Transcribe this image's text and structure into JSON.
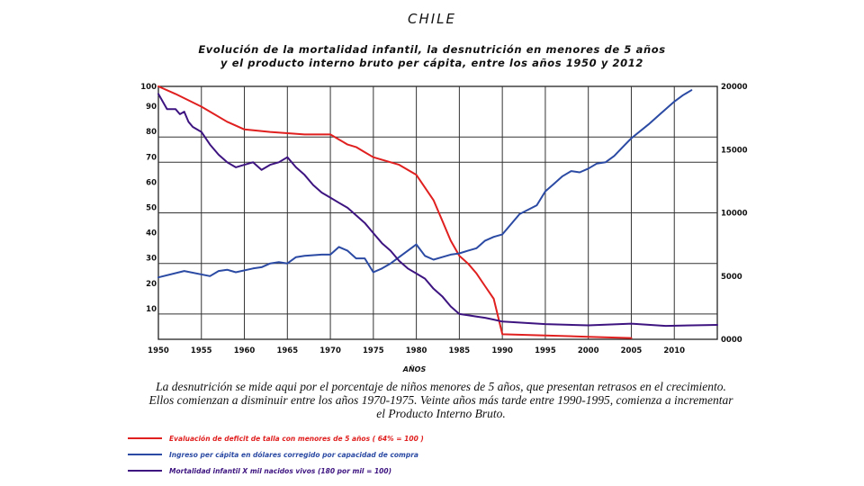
{
  "chart_data": {
    "type": "line",
    "country": "CHILE",
    "title_line1": "Evolución de la mortalidad infantil, la desnutrición en menores de 5 años",
    "title_line2": "y el producto interno bruto per cápita, entre los años 1950 y 2012",
    "xlabel": "AÑOS",
    "xlim": [
      1950,
      2015
    ],
    "x_ticks": [
      1950,
      1955,
      1960,
      1965,
      1970,
      1975,
      1980,
      1985,
      1990,
      1995,
      2000,
      2005,
      2010
    ],
    "ylim_left": [
      0,
      100
    ],
    "y_left_ticks": [
      10,
      20,
      30,
      40,
      50,
      60,
      70,
      80,
      90,
      100
    ],
    "ylim_right": [
      0,
      20000
    ],
    "y_right_ticks": [
      0,
      5000,
      10000,
      15000,
      20000
    ],
    "y_right_tick_labels": [
      "0000",
      "5000",
      "10000",
      "15000",
      "20000"
    ],
    "grid": true,
    "legend_position": "bottom",
    "series": [
      {
        "name": "Evaluación de deficit de talla con menores de 5 años ( 64% = 100 )",
        "color": "#e01f1f",
        "axis": "left",
        "x": [
          1950,
          1952,
          1955,
          1958,
          1960,
          1963,
          1965,
          1967,
          1970,
          1971,
          1972,
          1973,
          1974,
          1975,
          1978,
          1980,
          1981,
          1982,
          1983,
          1984,
          1985,
          1986,
          1987,
          1988,
          1989,
          1990,
          1995,
          2000,
          2005
        ],
        "values": [
          100,
          97,
          92,
          86,
          83,
          82,
          81.5,
          81,
          81,
          79,
          77,
          76,
          74,
          72,
          69,
          65,
          60,
          55,
          47,
          39,
          33,
          30,
          26,
          21,
          16,
          2,
          1.5,
          1,
          0.5
        ]
      },
      {
        "name": "Ingreso per cápita en dólares corregido por capacidad de compra",
        "color": "#2b4aa3",
        "axis": "right",
        "x": [
          1950,
          1953,
          1956,
          1957,
          1958,
          1959,
          1961,
          1962,
          1963,
          1964,
          1965,
          1966,
          1967,
          1969,
          1970,
          1971,
          1972,
          1973,
          1974,
          1975,
          1976,
          1977,
          1979,
          1980,
          1981,
          1982,
          1983,
          1984,
          1985,
          1986,
          1987,
          1988,
          1989,
          1990,
          1992,
          1994,
          1995,
          1996,
          1997,
          1998,
          1999,
          2000,
          2001,
          2002,
          2003,
          2004,
          2005,
          2007,
          2008,
          2009,
          2010,
          2011,
          2012
        ],
        "values": [
          4900,
          5400,
          5000,
          5400,
          5500,
          5300,
          5600,
          5700,
          6000,
          6100,
          6000,
          6500,
          6600,
          6700,
          6700,
          7300,
          7000,
          6400,
          6400,
          5300,
          5600,
          6000,
          7000,
          7500,
          6600,
          6300,
          6500,
          6700,
          6800,
          7000,
          7200,
          7800,
          8100,
          8300,
          9900,
          10600,
          11700,
          12300,
          12900,
          13300,
          13200,
          13500,
          13900,
          14000,
          14500,
          15200,
          15900,
          17000,
          17600,
          18200,
          18800,
          19300,
          19700
        ]
      },
      {
        "name": "Mortalidad infantil X mil nacidos vivos (180 por mil = 100)",
        "color": "#3d1480",
        "axis": "left",
        "x": [
          1950,
          1951,
          1952,
          1952.5,
          1953,
          1953.5,
          1954,
          1955,
          1956,
          1957,
          1958,
          1959,
          1960,
          1961,
          1962,
          1963,
          1964,
          1965,
          1966,
          1967,
          1968,
          1969,
          1970,
          1971,
          1972,
          1973,
          1974,
          1975,
          1976,
          1977,
          1978,
          1979,
          1980,
          1981,
          1982,
          1983,
          1984,
          1985,
          1986,
          1987,
          1988,
          1989,
          1990,
          1995,
          2000,
          2005,
          2009,
          2015
        ],
        "values": [
          97,
          91,
          91,
          89,
          90,
          86,
          84,
          82,
          77,
          73,
          70,
          68,
          69,
          70,
          67,
          69,
          70,
          72,
          68,
          65,
          61,
          58,
          56,
          54,
          52,
          49,
          46,
          42,
          38,
          35,
          31,
          28,
          26,
          24,
          20,
          17,
          13,
          10,
          9.5,
          9,
          8.5,
          7.8,
          7,
          6,
          5.5,
          6.2,
          5.3,
          5.7
        ]
      }
    ],
    "caption": "La desnutrición se mide aqui por el porcentaje de niños menores de 5 años, que presentan retrasos en el crecimiento. Ellos comienzan a disminuir entre los años 1970-1975. Veinte años más tarde entre 1990-1995, comienza a incrementar el Producto Interno Bruto."
  }
}
